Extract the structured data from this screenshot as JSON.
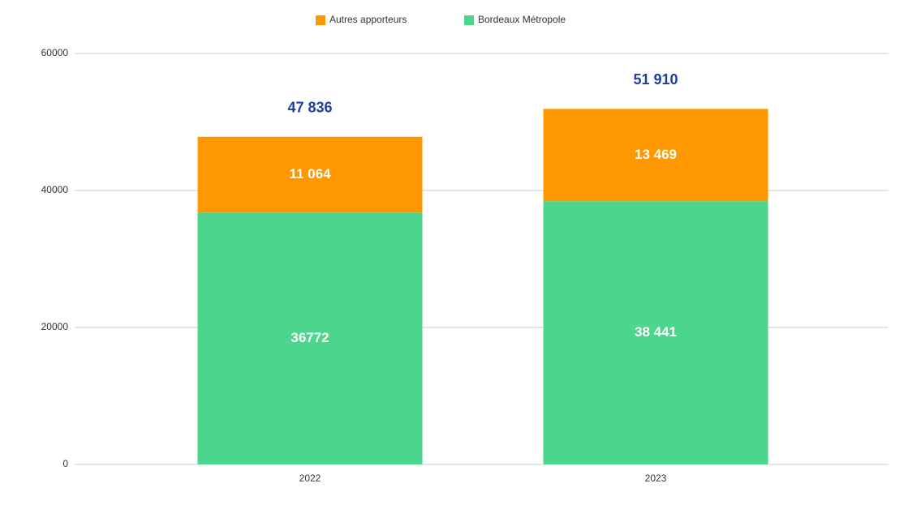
{
  "chart_data": {
    "type": "stacked_bar",
    "categories": [
      "2022",
      "2023"
    ],
    "series": [
      {
        "name": "Autres apporteurs",
        "color": "#ff9800",
        "values": [
          11064,
          13469
        ],
        "value_labels": [
          "11 064",
          "13 469"
        ]
      },
      {
        "name": "Bordeaux Métropole",
        "color": "#4cd68d",
        "values": [
          36772,
          38441
        ],
        "value_labels": [
          "36772",
          "38 441"
        ]
      }
    ],
    "total_labels": [
      "47 836",
      "51 910"
    ],
    "ylim": [
      0,
      60000
    ],
    "yticks": [
      0,
      20000,
      40000,
      60000
    ],
    "grid": true,
    "legend": "top"
  }
}
